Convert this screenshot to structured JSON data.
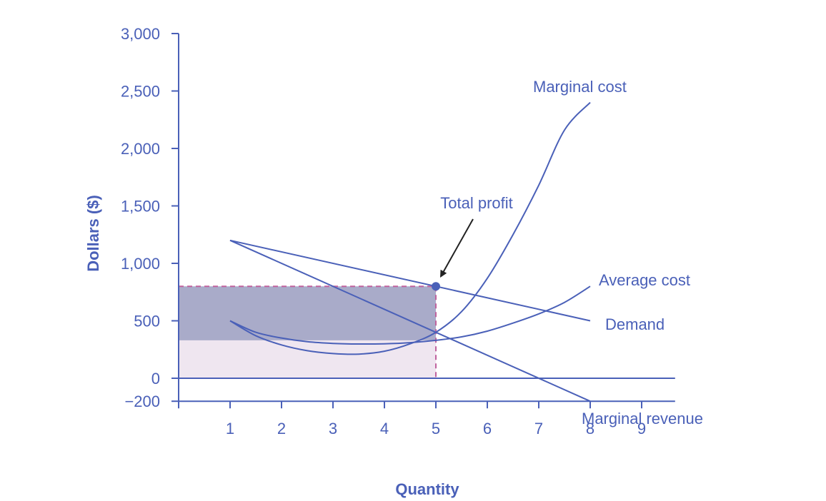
{
  "chart_data": {
    "type": "line",
    "xlabel": "Quantity",
    "ylabel": "Dollars ($)",
    "xlim": [
      0,
      9.65
    ],
    "ylim": [
      -200,
      3000
    ],
    "x_ticks": [
      1,
      2,
      3,
      4,
      5,
      6,
      7,
      8,
      9
    ],
    "y_ticks": [
      -200,
      0,
      500,
      1000,
      1500,
      2000,
      2500,
      3000
    ],
    "y_tick_labels": [
      "−200",
      "0",
      "500",
      "1,000",
      "1,500",
      "2,000",
      "2,500",
      "3,000"
    ],
    "colors": {
      "axis": "#4a60b8",
      "curve": "#4a60b8",
      "profit_area": "#a9abc9",
      "cost_area": "#efe6f0",
      "guide_dash": "#c0639e",
      "arrow": "#222222"
    },
    "series": [
      {
        "name": "Demand",
        "points": [
          [
            1,
            1200
          ],
          [
            8,
            500
          ]
        ]
      },
      {
        "name": "Marginal revenue",
        "points": [
          [
            1,
            1200
          ],
          [
            8,
            -200
          ]
        ]
      },
      {
        "name": "Marginal cost",
        "points": [
          [
            1,
            500
          ],
          [
            1.5,
            370
          ],
          [
            2,
            290
          ],
          [
            2.5,
            240
          ],
          [
            3,
            215
          ],
          [
            3.5,
            210
          ],
          [
            4,
            235
          ],
          [
            4.5,
            300
          ],
          [
            5,
            400
          ],
          [
            5.5,
            580
          ],
          [
            6,
            870
          ],
          [
            6.5,
            1250
          ],
          [
            7,
            1680
          ],
          [
            7.5,
            2160
          ],
          [
            8,
            2400
          ]
        ]
      },
      {
        "name": "Average cost",
        "points": [
          [
            1,
            500
          ],
          [
            1.5,
            400
          ],
          [
            2,
            350
          ],
          [
            2.5,
            318
          ],
          [
            3,
            303
          ],
          [
            3.5,
            298
          ],
          [
            4,
            300
          ],
          [
            4.5,
            310
          ],
          [
            5,
            330
          ],
          [
            5.5,
            360
          ],
          [
            6,
            410
          ],
          [
            6.5,
            480
          ],
          [
            7,
            560
          ],
          [
            7.5,
            660
          ],
          [
            8,
            800
          ]
        ]
      }
    ],
    "highlight_point": {
      "x": 5,
      "y": 800
    },
    "profit_rectangle": {
      "x0": 0,
      "x1": 5,
      "y0": 330,
      "y1": 800
    },
    "cost_rectangle": {
      "x0": 0,
      "x1": 5,
      "y0": 0,
      "y1": 330
    },
    "annotations": [
      {
        "text": "Total profit",
        "target": {
          "x": 5,
          "y": 800
        }
      }
    ]
  }
}
